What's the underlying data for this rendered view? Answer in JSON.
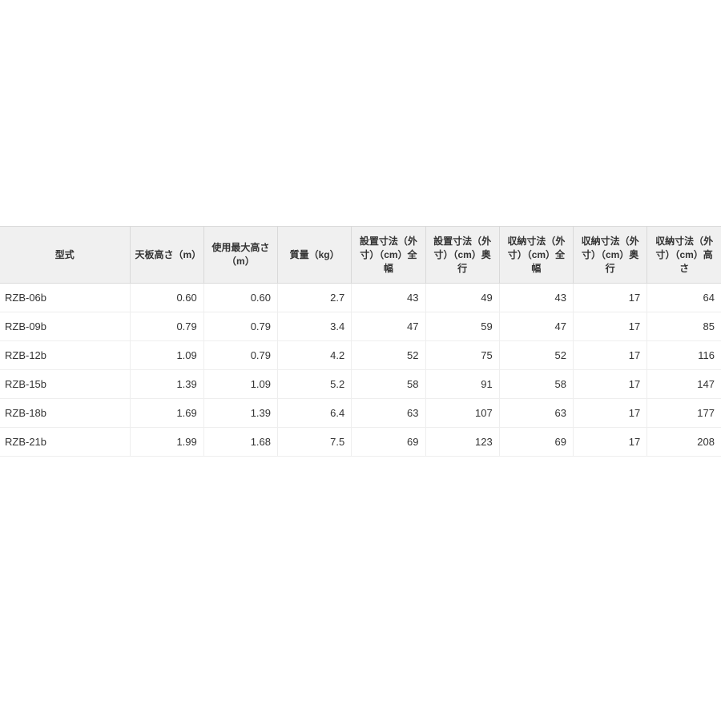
{
  "table": {
    "type": "table",
    "header_bg": "#f0f0f0",
    "header_text_color": "#333333",
    "header_fontsize": 12,
    "header_fontweight": 700,
    "cell_fontsize": 13,
    "cell_text_color": "#333333",
    "border_color_header": "#d9d9d9",
    "border_color_body": "#eeeeee",
    "background_color": "#ffffff",
    "column_widths_pct": [
      18,
      10.25,
      10.25,
      10.25,
      10.25,
      10.25,
      10.25,
      10.25,
      10.25
    ],
    "column_align": [
      "left",
      "right",
      "right",
      "right",
      "right",
      "right",
      "right",
      "right",
      "right"
    ],
    "columns": [
      "型式",
      "天板高さ（m）",
      "使用最大高さ（m）",
      "質量（kg）",
      "設置寸法（外寸）（cm）全幅",
      "設置寸法（外寸）（cm）奥行",
      "収納寸法（外寸）（cm）全幅",
      "収納寸法（外寸）（cm）奥行",
      "収納寸法（外寸）（cm）高さ"
    ],
    "rows": [
      [
        "RZB-06b",
        "0.60",
        "0.60",
        "2.7",
        "43",
        "49",
        "43",
        "17",
        "64"
      ],
      [
        "RZB-09b",
        "0.79",
        "0.79",
        "3.4",
        "47",
        "59",
        "47",
        "17",
        "85"
      ],
      [
        "RZB-12b",
        "1.09",
        "0.79",
        "4.2",
        "52",
        "75",
        "52",
        "17",
        "116"
      ],
      [
        "RZB-15b",
        "1.39",
        "1.09",
        "5.2",
        "58",
        "91",
        "58",
        "17",
        "147"
      ],
      [
        "RZB-18b",
        "1.69",
        "1.39",
        "6.4",
        "63",
        "107",
        "63",
        "17",
        "177"
      ],
      [
        "RZB-21b",
        "1.99",
        "1.68",
        "7.5",
        "69",
        "123",
        "69",
        "17",
        "208"
      ]
    ]
  }
}
